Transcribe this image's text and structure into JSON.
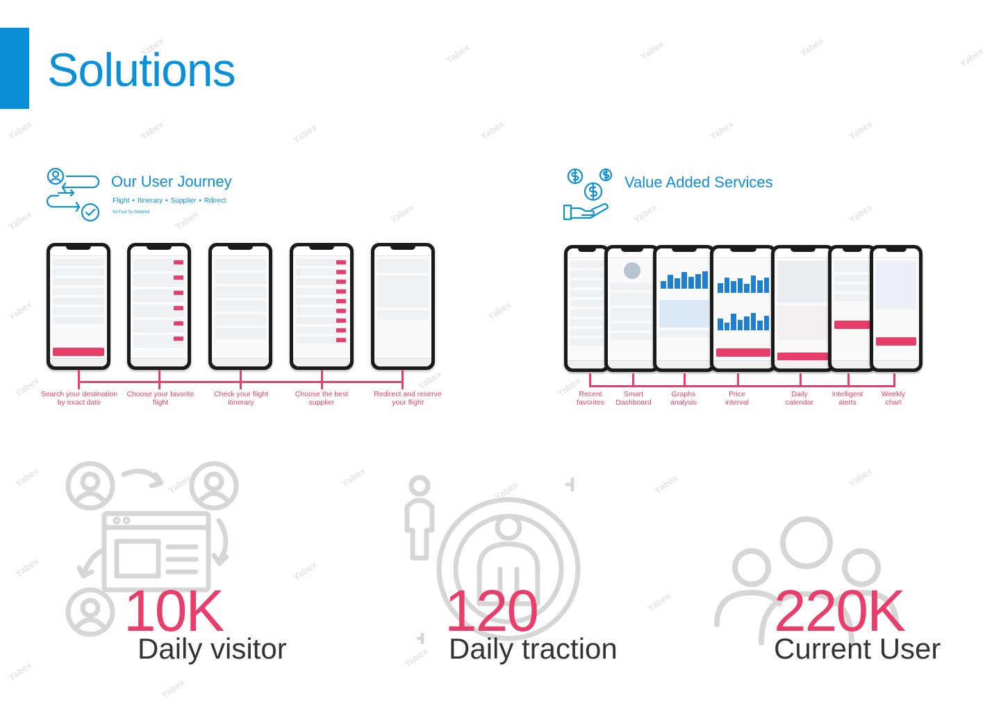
{
  "page": {
    "title": "Solutions"
  },
  "watermark": "Yabex",
  "user_journey": {
    "title": "Our User Journey",
    "steps": [
      "Flight",
      "Itinerary",
      "Supplier",
      "Rdirect"
    ],
    "tagline": "So Fast So Detailed",
    "captions": [
      [
        "Search your destination",
        "by exact date"
      ],
      [
        "Choose your favorite",
        "flight"
      ],
      [
        "Check your flight",
        "itinerary"
      ],
      [
        "Choose the best",
        "supplier"
      ],
      [
        "Redirect and reserve",
        "your flight"
      ]
    ]
  },
  "value_added": {
    "title": "Value Added Services",
    "captions": [
      [
        "Recent",
        "favorites"
      ],
      [
        "Smart",
        "Dashboard"
      ],
      [
        "Graphs",
        "analysis"
      ],
      [
        "Price",
        "interval"
      ],
      [
        "Daily",
        "calendar"
      ],
      [
        "Intelligent",
        "alerts"
      ],
      [
        "Weekly",
        "chart"
      ]
    ]
  },
  "stats": [
    {
      "number": "10K",
      "label": "Daily visitor",
      "icon": "user-exchange-icon"
    },
    {
      "number": "120",
      "label": "Daily traction",
      "icon": "person-target-icon"
    },
    {
      "number": "220K",
      "label": "Current User",
      "icon": "group-users-icon"
    }
  ],
  "colors": {
    "brand_blue": "#0b8fd6",
    "accent_pink": "#e83e6c",
    "icon_gray": "#d6d6d6",
    "label_dark": "#333333"
  }
}
